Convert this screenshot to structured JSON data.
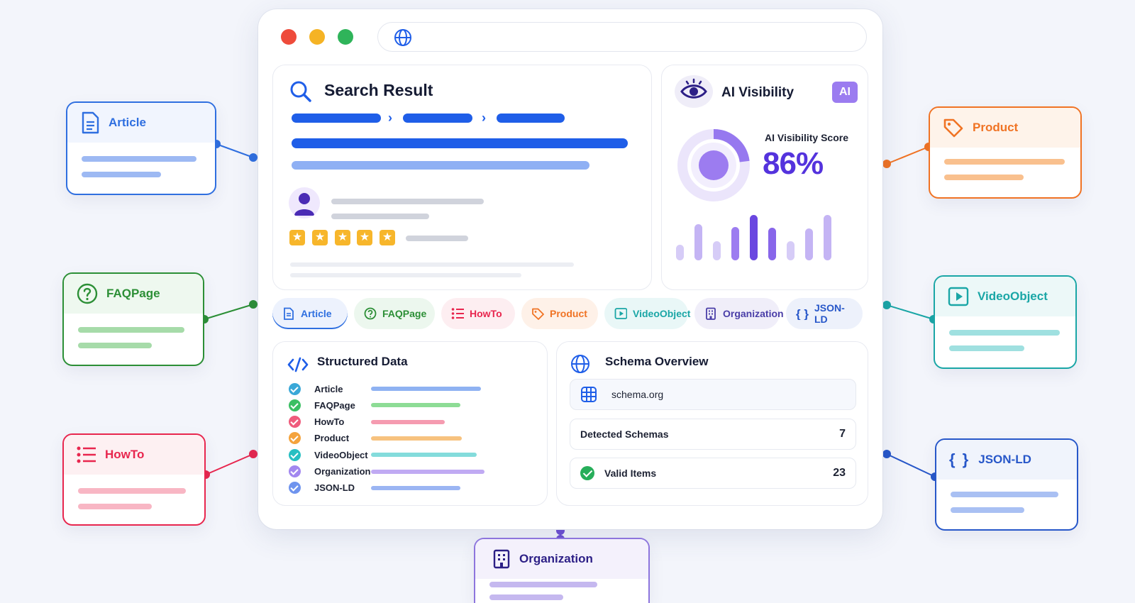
{
  "search_result": {
    "title": "Search Result",
    "rating_stars": 5
  },
  "ai_visibility": {
    "title": "AI Visibility",
    "badge": "AI",
    "score_label": "AI Visibility Score",
    "score_text": "86%",
    "score_value": 86,
    "bar_levels": [
      0.35,
      0.8,
      0.42,
      0.74,
      1.0,
      0.72,
      0.42,
      0.7,
      1.0
    ]
  },
  "schema_chips": [
    {
      "label": "Article",
      "color": "#2f6fe0",
      "bg": "#edf2fd",
      "icon": "document-icon"
    },
    {
      "label": "FAQPage",
      "color": "#2c8f36",
      "bg": "#ecf7ee",
      "icon": "question-icon"
    },
    {
      "label": "HowTo",
      "color": "#e8264e",
      "bg": "#fdeef1",
      "icon": "list-icon"
    },
    {
      "label": "Product",
      "color": "#f07324",
      "bg": "#fef1e8",
      "icon": "tag-icon"
    },
    {
      "label": "VideoObject",
      "color": "#1aa6a6",
      "bg": "#e9f7f7",
      "icon": "play-icon"
    },
    {
      "label": "Organization",
      "color": "#4a3ea8",
      "bg": "#f0eef9",
      "icon": "building-icon"
    },
    {
      "label": "JSON-LD",
      "color": "#2757c9",
      "bg": "#edf1fb",
      "icon": "braces-icon"
    }
  ],
  "structured_data": {
    "title": "Structured Data",
    "items": [
      {
        "label": "Article",
        "color": "#3aa8d8",
        "line": "#8fb2f2",
        "fill": 0.69
      },
      {
        "label": "FAQPage",
        "color": "#3bbf63",
        "line": "#8ddc95",
        "fill": 0.56
      },
      {
        "label": "HowTo",
        "color": "#ef5b7c",
        "line": "#f59bb0",
        "fill": 0.46
      },
      {
        "label": "Product",
        "color": "#f4a33d",
        "line": "#f7c27f",
        "fill": 0.57
      },
      {
        "label": "VideoObject",
        "color": "#27bfc2",
        "line": "#84dcdc",
        "fill": 0.66
      },
      {
        "label": "Organization",
        "color": "#a287ef",
        "line": "#c0aaf3",
        "fill": 0.71
      },
      {
        "label": "JSON-LD",
        "color": "#6f94ee",
        "line": "#9bb5f3",
        "fill": 0.56
      }
    ]
  },
  "schema_overview": {
    "title": "Schema Overview",
    "source": "schema.org",
    "detected_label": "Detected Schemas",
    "detected_value": "7",
    "valid_label": "Valid Items",
    "valid_value": "23"
  },
  "side_cards": {
    "article": {
      "label": "Article",
      "color": "#2f6fe0"
    },
    "faqpage": {
      "label": "FAQPage",
      "color": "#2c8f36"
    },
    "howto": {
      "label": "HowTo",
      "color": "#e8264e"
    },
    "product": {
      "label": "Product",
      "color": "#f07324"
    },
    "videoobject": {
      "label": "VideoObject",
      "color": "#1aa6a6"
    },
    "jsonld": {
      "label": "JSON-LD",
      "color": "#2757c9"
    },
    "organization": {
      "label": "Organization",
      "color": "#4a3ea8"
    }
  }
}
